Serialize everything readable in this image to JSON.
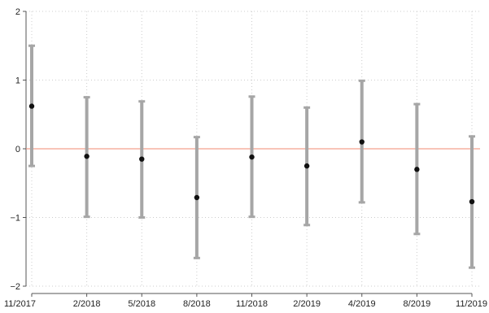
{
  "chart_data": {
    "type": "scatter",
    "title": "",
    "xlabel": "",
    "ylabel": "",
    "categories": [
      "11/2017",
      "2/2018",
      "5/2018",
      "8/2018",
      "11/2018",
      "2/2019",
      "4/2019",
      "8/2019",
      "11/2019"
    ],
    "estimates": [
      0.62,
      -0.11,
      -0.15,
      -0.71,
      -0.12,
      -0.25,
      0.1,
      -0.3,
      -0.77
    ],
    "ci_lower": [
      -0.25,
      -0.99,
      -1.0,
      -1.59,
      -0.99,
      -1.11,
      -0.78,
      -1.24,
      -1.73
    ],
    "ci_upper": [
      1.5,
      0.75,
      0.69,
      0.17,
      0.76,
      0.6,
      0.99,
      0.65,
      0.18
    ],
    "ylim": [
      -2.0,
      2.0
    ],
    "yticks": [
      -2,
      -1,
      0,
      1,
      2
    ],
    "ytick_labels": [
      "−2",
      "−1",
      "0",
      "1",
      "2"
    ],
    "reference_line": 0,
    "grid": true,
    "colors": {
      "error_bar": "#a6a6a6",
      "point": "#111111",
      "reference_line": "#f08a70",
      "grid": "#cccccc"
    }
  }
}
